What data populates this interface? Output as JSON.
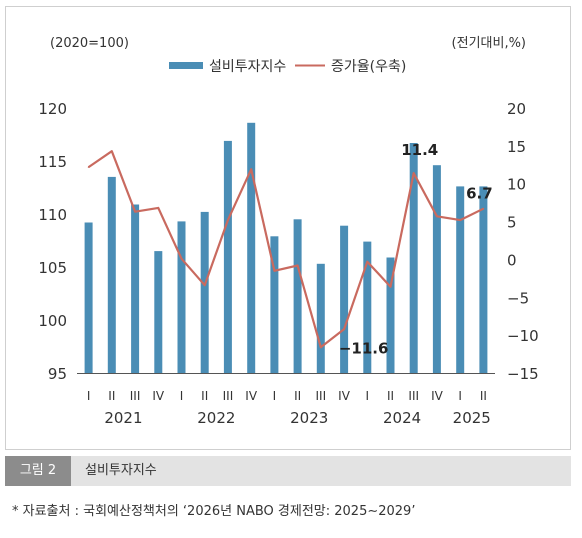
{
  "chart_data": {
    "type": "bar",
    "left_unit_label": "(2020=100)",
    "right_unit_label": "(전기대비,%)",
    "categories": [
      "I",
      "II",
      "III",
      "IV",
      "I",
      "II",
      "III",
      "IV",
      "I",
      "II",
      "III",
      "IV",
      "I",
      "II",
      "III",
      "IV",
      "I",
      "II"
    ],
    "years": [
      {
        "label": "2021",
        "from": 0,
        "to": 3
      },
      {
        "label": "2022",
        "from": 4,
        "to": 7
      },
      {
        "label": "2023",
        "from": 8,
        "to": 11
      },
      {
        "label": "2024",
        "from": 12,
        "to": 15
      },
      {
        "label": "2025",
        "from": 16,
        "to": 17
      }
    ],
    "series": [
      {
        "name": "설비투자지수",
        "type": "bar",
        "axis": "left",
        "color": "#4a8db5",
        "values": [
          109.2,
          113.5,
          110.9,
          106.5,
          109.3,
          110.2,
          116.9,
          118.6,
          107.9,
          109.5,
          105.3,
          108.9,
          107.4,
          105.9,
          116.7,
          114.6,
          112.6,
          112.6
        ]
      },
      {
        "name": "증가율(우축)",
        "type": "line",
        "axis": "right",
        "color": "#c96a5f",
        "values": [
          12.2,
          14.3,
          6.3,
          6.8,
          0.1,
          -3.4,
          5.2,
          11.9,
          -1.5,
          -0.8,
          -11.6,
          -9.2,
          -0.3,
          -3.6,
          11.4,
          5.7,
          5.2,
          6.7
        ]
      }
    ],
    "ylim_left": [
      95,
      120
    ],
    "yticks_left": [
      95,
      100,
      105,
      110,
      115,
      120
    ],
    "ylim_right": [
      -15,
      20
    ],
    "yticks_right": [
      -15,
      -10,
      -5,
      0,
      5,
      10,
      15,
      20
    ],
    "annotations": [
      {
        "index": 10,
        "text": "-11.6"
      },
      {
        "index": 14,
        "text": "11.4"
      },
      {
        "index": 17,
        "text": "6.7"
      }
    ],
    "legend_position": "top",
    "grid": false
  },
  "figure_label": "그림 2",
  "figure_title": "설비투자지수",
  "source_note": "* 자료출처 : 국회예산정책처의 ‘2026년 NABO 경제전망: 2025∼2029’"
}
